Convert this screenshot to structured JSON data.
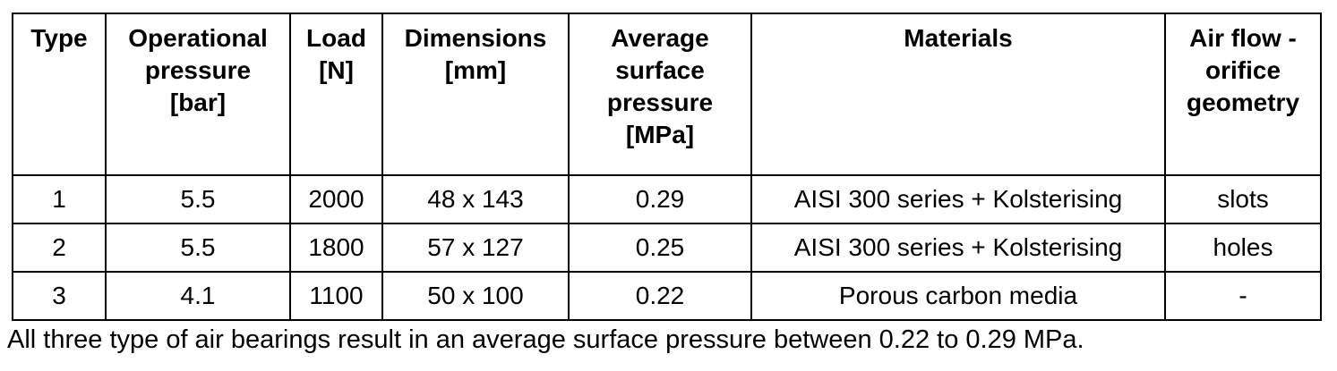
{
  "table": {
    "headers": [
      {
        "label": "Type"
      },
      {
        "label": "Operational\npressure\n[bar]"
      },
      {
        "label": "Load\n[N]"
      },
      {
        "label": "Dimensions\n[mm]"
      },
      {
        "label": "Average\nsurface\npressure\n[MPa]"
      },
      {
        "label": "Materials"
      },
      {
        "label": "Air flow -\norifice\ngeometry"
      }
    ],
    "rows": [
      {
        "cells": [
          "1",
          "5.5",
          "2000",
          "48 x 143",
          "0.29",
          "AISI 300 series + Kolsterising",
          "slots"
        ]
      },
      {
        "cells": [
          "2",
          "5.5",
          "1800",
          "57 x 127",
          "0.25",
          "AISI 300 series + Kolsterising",
          "holes"
        ]
      },
      {
        "cells": [
          "3",
          "4.1",
          "1100",
          "50 x 100",
          "0.22",
          "Porous carbon media",
          "-"
        ]
      }
    ]
  },
  "caption": {
    "text": "All three type of air bearings result in an average surface pressure between 0.22 to 0.29 MPa."
  },
  "colors": {
    "border": "#000000",
    "text": "#000000",
    "background": "#ffffff"
  },
  "chart_data": {
    "type": "table",
    "title": "",
    "columns": [
      "Type",
      "Operational pressure [bar]",
      "Load [N]",
      "Dimensions [mm]",
      "Average surface pressure [MPa]",
      "Materials",
      "Air flow - orifice geometry"
    ],
    "rows": [
      [
        "1",
        "5.5",
        "2000",
        "48 x 143",
        "0.29",
        "AISI 300 series + Kolsterising",
        "slots"
      ],
      [
        "2",
        "5.5",
        "1800",
        "57 x 127",
        "0.25",
        "AISI 300 series + Kolsterising",
        "holes"
      ],
      [
        "3",
        "4.1",
        "1100",
        "50 x 100",
        "0.22",
        "Porous carbon media",
        "-"
      ]
    ],
    "annotations": [
      "All three type of air bearings result in an average surface pressure between 0.22 to 0.29 MPa."
    ]
  }
}
